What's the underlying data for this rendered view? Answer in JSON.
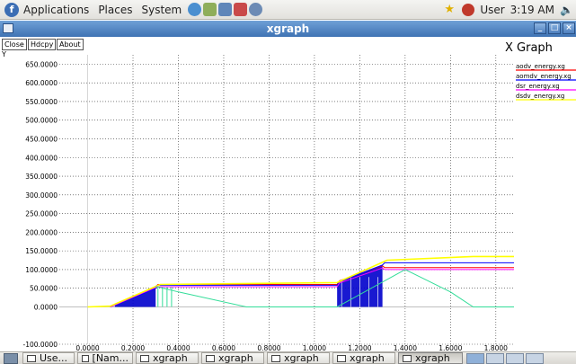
{
  "top_panel": {
    "menus": [
      "Applications",
      "Places",
      "System"
    ],
    "user": "User",
    "clock": "3:19 AM"
  },
  "window": {
    "title": "xgraph"
  },
  "xgraph": {
    "buttons": {
      "close": "Close",
      "hdcpy": "Hdcpy",
      "about": "About"
    },
    "y_axis_label": "Y",
    "graph_title": "X Graph",
    "legend": [
      {
        "name": "aodv_energy.xg",
        "color": "#ff0000"
      },
      {
        "name": "aomdv_energy.xg",
        "color": "#0000ff"
      },
      {
        "name": "dsr_energy.xg",
        "color": "#ff00ff"
      },
      {
        "name": "dsdv_energy.xg",
        "color": "#ffff00"
      }
    ]
  },
  "chart_data": {
    "type": "line",
    "xlabel": "",
    "ylabel": "Y",
    "title": "X Graph",
    "xlim": [
      -0.125,
      1.88
    ],
    "ylim": [
      -100,
      675
    ],
    "x_ticks": [
      "0.0000",
      "0.2000",
      "0.4000",
      "0.6000",
      "0.8000",
      "1.0000",
      "1.2000",
      "1.4000",
      "1.6000",
      "1.8000"
    ],
    "y_ticks": [
      "-100.0000",
      "0.0000",
      "50.0000",
      "100.0000",
      "150.0000",
      "200.0000",
      "250.0000",
      "300.0000",
      "350.0000",
      "400.0000",
      "450.0000",
      "500.0000",
      "550.0000",
      "600.0000",
      "650.0000"
    ],
    "grid": true,
    "legend_position": "top-right",
    "series": [
      {
        "name": "aodv_energy.xg",
        "color": "#ff0000",
        "x": [
          0.1,
          0.3,
          0.31,
          1.1,
          1.11,
          1.3,
          1.31,
          1.88
        ],
        "y": [
          0,
          55,
          60,
          60,
          70,
          110,
          105,
          105
        ]
      },
      {
        "name": "aomdv_energy.xg",
        "color": "#0000ff",
        "x": [
          0.1,
          0.3,
          0.31,
          1.1,
          1.11,
          1.3,
          1.31,
          1.88
        ],
        "y": [
          0,
          50,
          58,
          58,
          68,
          112,
          118,
          118
        ]
      },
      {
        "name": "dsr_energy.xg",
        "color": "#ff00ff",
        "x": [
          0.1,
          0.3,
          0.31,
          1.1,
          1.11,
          1.3,
          1.31,
          1.88
        ],
        "y": [
          0,
          52,
          54,
          54,
          64,
          104,
          100,
          100
        ]
      },
      {
        "name": "dsdv_energy.xg",
        "color": "#ffff00",
        "x": [
          0.0,
          0.1,
          0.32,
          1.1,
          1.32,
          1.7,
          1.88
        ],
        "y": [
          0,
          2,
          60,
          65,
          125,
          135,
          135
        ]
      },
      {
        "name": "",
        "color": "#33dd99",
        "x": [
          0.3,
          0.4,
          0.7,
          1.1,
          1.4,
          1.6,
          1.7,
          1.88
        ],
        "y": [
          55,
          40,
          0,
          0,
          100,
          40,
          0,
          0
        ]
      }
    ]
  },
  "taskbar": {
    "tasks": [
      "Use...",
      "[Nam...",
      "xgraph",
      "xgraph",
      "xgraph",
      "xgraph",
      "xgraph"
    ],
    "active_index": 6
  }
}
